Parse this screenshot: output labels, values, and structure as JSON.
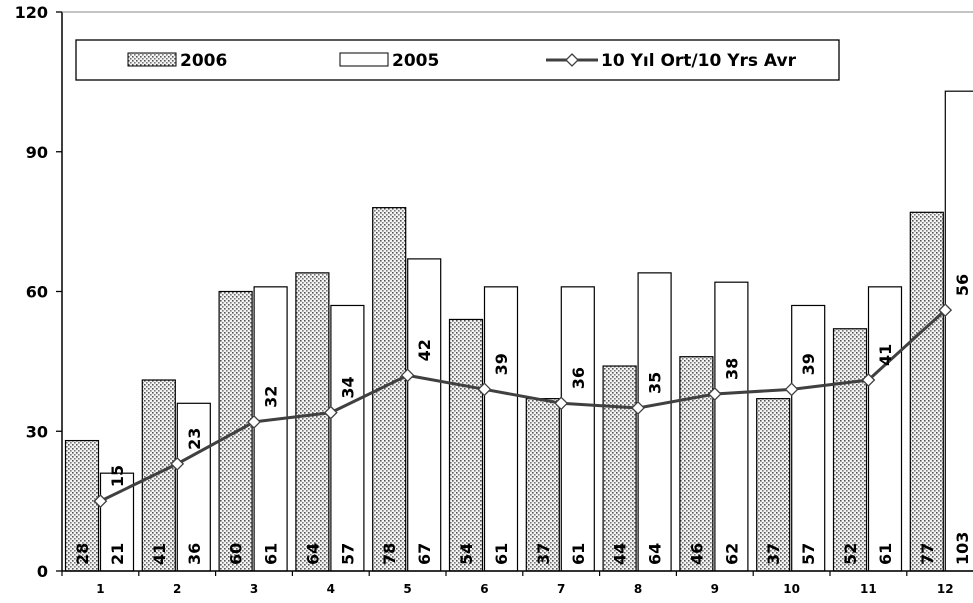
{
  "chart_data": {
    "type": "bar",
    "categories": [
      "1",
      "2",
      "3",
      "4",
      "5",
      "6",
      "7",
      "8",
      "9",
      "10",
      "11",
      "12"
    ],
    "series": [
      {
        "name": "2006",
        "kind": "bar",
        "pattern": "dotted-gray",
        "values": [
          28,
          41,
          60,
          64,
          78,
          54,
          37,
          44,
          46,
          37,
          52,
          77
        ]
      },
      {
        "name": "2005",
        "kind": "bar",
        "pattern": "white",
        "values": [
          21,
          36,
          61,
          57,
          67,
          61,
          61,
          64,
          62,
          57,
          61,
          103
        ]
      },
      {
        "name": "10 Yıl Ort/10 Yrs Avr",
        "kind": "line",
        "marker": "diamond",
        "color": "#404040",
        "values": [
          15,
          23,
          32,
          34,
          42,
          39,
          36,
          35,
          38,
          39,
          41,
          56
        ]
      }
    ],
    "yticks": [
      0,
      30,
      60,
      90,
      120
    ],
    "ylim": [
      0,
      120
    ],
    "grid": false,
    "legend_position": "top"
  }
}
